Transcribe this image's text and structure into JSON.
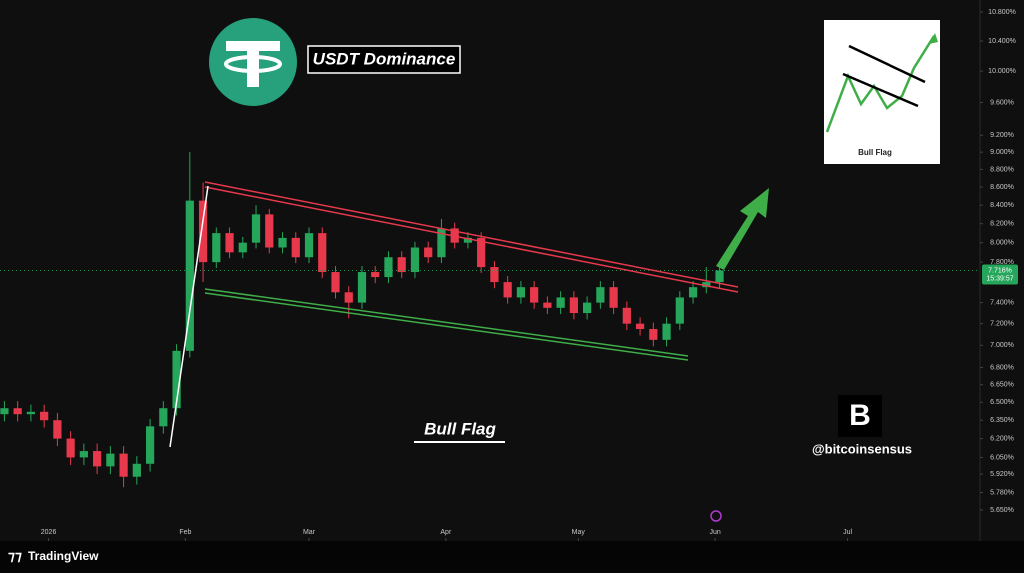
{
  "chart_data": {
    "type": "candlestick",
    "title": "USDT Dominance",
    "annotation": "Bull Flag",
    "watermark": "@bitcoinsensus",
    "inset_label": "Bull Flag",
    "brand": "TradingView",
    "log_scale": true,
    "up_color": "#26a65b",
    "down_color": "#e8394c",
    "xlim": [
      -11,
      211
    ],
    "ylim": [
      5.65,
      10.8
    ],
    "xticks": [
      {
        "value": 0,
        "label": "2026"
      },
      {
        "value": 31,
        "label": "Feb"
      },
      {
        "value": 59,
        "label": "Mar"
      },
      {
        "value": 90,
        "label": "Apr"
      },
      {
        "value": 120,
        "label": "May"
      },
      {
        "value": 151,
        "label": "Jun"
      },
      {
        "value": 181,
        "label": "Jul"
      }
    ],
    "yticks": [
      {
        "value": 10.8,
        "label": "10.800%"
      },
      {
        "value": 10.4,
        "label": "10.400%"
      },
      {
        "value": 10.0,
        "label": "10.000%"
      },
      {
        "value": 9.6,
        "label": "9.600%"
      },
      {
        "value": 9.2,
        "label": "9.200%"
      },
      {
        "value": 9.0,
        "label": "9.000%"
      },
      {
        "value": 8.8,
        "label": "8.800%"
      },
      {
        "value": 8.6,
        "label": "8.600%"
      },
      {
        "value": 8.4,
        "label": "8.400%"
      },
      {
        "value": 8.2,
        "label": "8.200%"
      },
      {
        "value": 8.0,
        "label": "8.000%"
      },
      {
        "value": 7.8,
        "label": "7.800%"
      },
      {
        "value": 7.4,
        "label": "7.400%"
      },
      {
        "value": 7.2,
        "label": "7.200%"
      },
      {
        "value": 7.0,
        "label": "7.000%"
      },
      {
        "value": 6.8,
        "label": "6.800%"
      },
      {
        "value": 6.65,
        "label": "6.650%"
      },
      {
        "value": 6.5,
        "label": "6.500%"
      },
      {
        "value": 6.35,
        "label": "6.350%"
      },
      {
        "value": 6.2,
        "label": "6.200%"
      },
      {
        "value": 6.05,
        "label": "6.050%"
      },
      {
        "value": 5.92,
        "label": "5.920%"
      },
      {
        "value": 5.78,
        "label": "5.780%"
      },
      {
        "value": 5.65,
        "label": "5.650%"
      }
    ],
    "last_price": {
      "value": 7.716,
      "label": "7.716%"
    },
    "countdown": "15:39:57",
    "x": [
      -10,
      -7,
      -4,
      -1,
      2,
      5,
      8,
      11,
      14,
      17,
      20,
      23,
      26,
      29,
      32,
      35,
      38,
      41,
      44,
      47,
      50,
      53,
      56,
      59,
      62,
      65,
      68,
      71,
      74,
      77,
      80,
      83,
      86,
      89,
      92,
      95,
      98,
      101,
      104,
      107,
      110,
      113,
      116,
      119,
      122,
      125,
      128,
      131,
      134,
      137,
      140,
      143,
      146,
      149,
      152
    ],
    "open": [
      6.4,
      6.45,
      6.4,
      6.42,
      6.35,
      6.2,
      6.05,
      6.1,
      5.98,
      6.08,
      5.9,
      6.0,
      6.3,
      6.45,
      6.95,
      8.45,
      7.8,
      8.1,
      7.9,
      8.0,
      8.3,
      7.95,
      8.05,
      7.85,
      8.1,
      7.7,
      7.5,
      7.4,
      7.7,
      7.65,
      7.85,
      7.7,
      7.95,
      7.85,
      8.15,
      8.0,
      8.05,
      7.75,
      7.6,
      7.45,
      7.55,
      7.4,
      7.35,
      7.45,
      7.3,
      7.4,
      7.55,
      7.35,
      7.2,
      7.15,
      7.05,
      7.2,
      7.45,
      7.55,
      7.6
    ],
    "high": [
      6.51,
      6.51,
      6.48,
      6.48,
      6.41,
      6.26,
      6.16,
      6.16,
      6.14,
      6.14,
      6.06,
      6.36,
      6.51,
      7.01,
      9.0,
      8.65,
      8.16,
      8.16,
      8.06,
      8.4,
      8.36,
      8.11,
      8.11,
      8.16,
      8.16,
      7.76,
      7.56,
      7.76,
      7.76,
      7.91,
      7.91,
      8.01,
      8.01,
      8.25,
      8.21,
      8.11,
      8.11,
      7.81,
      7.66,
      7.61,
      7.61,
      7.46,
      7.51,
      7.51,
      7.46,
      7.61,
      7.61,
      7.41,
      7.26,
      7.21,
      7.26,
      7.51,
      7.61,
      7.75,
      7.8
    ],
    "low": [
      6.34,
      6.34,
      6.34,
      6.29,
      6.14,
      5.99,
      5.99,
      5.92,
      5.92,
      5.82,
      5.84,
      5.94,
      6.24,
      6.39,
      6.89,
      7.6,
      7.74,
      7.84,
      7.84,
      7.94,
      7.89,
      7.89,
      7.79,
      7.79,
      7.64,
      7.44,
      7.25,
      7.34,
      7.59,
      7.59,
      7.64,
      7.64,
      7.79,
      7.79,
      7.94,
      7.94,
      7.69,
      7.54,
      7.39,
      7.39,
      7.34,
      7.29,
      7.29,
      7.24,
      7.24,
      7.34,
      7.29,
      7.14,
      7.09,
      6.99,
      6.99,
      7.14,
      7.39,
      7.49,
      7.54
    ],
    "close": [
      6.45,
      6.4,
      6.42,
      6.35,
      6.2,
      6.05,
      6.1,
      5.98,
      6.08,
      5.9,
      6.0,
      6.3,
      6.45,
      6.95,
      8.45,
      7.8,
      8.1,
      7.9,
      8.0,
      8.3,
      7.95,
      8.05,
      7.85,
      8.1,
      7.7,
      7.5,
      7.4,
      7.7,
      7.65,
      7.85,
      7.7,
      7.95,
      7.85,
      8.15,
      8.0,
      8.05,
      7.75,
      7.6,
      7.45,
      7.55,
      7.4,
      7.35,
      7.45,
      7.3,
      7.4,
      7.55,
      7.35,
      7.2,
      7.15,
      7.05,
      7.2,
      7.45,
      7.55,
      7.6,
      7.716
    ]
  }
}
